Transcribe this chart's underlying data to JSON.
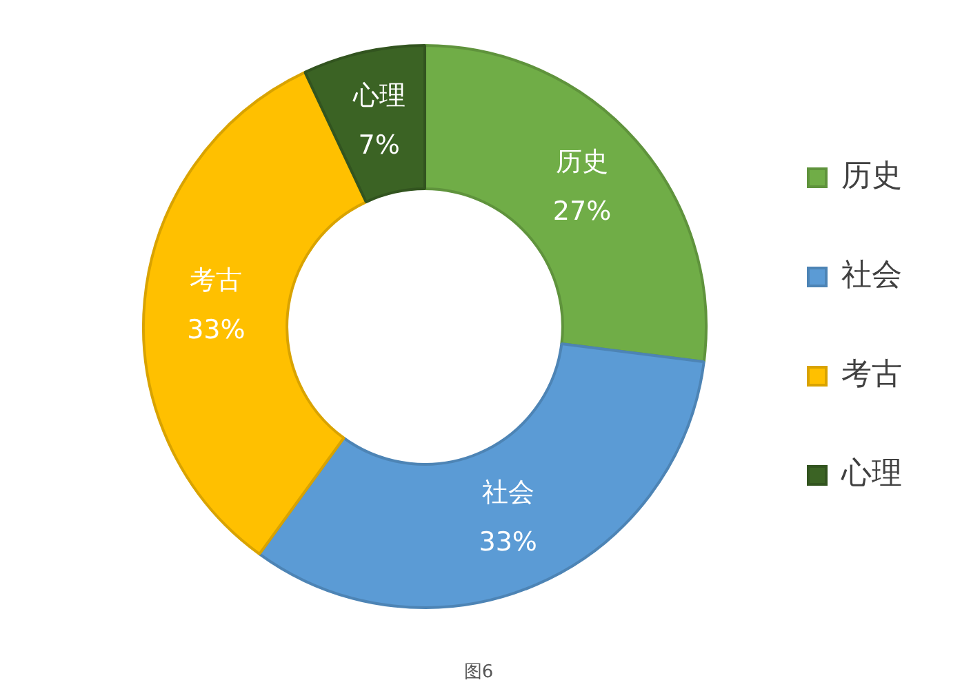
{
  "chart_data": {
    "type": "donut",
    "categories": [
      "历史",
      "社会",
      "考古",
      "心理"
    ],
    "values": [
      27,
      33,
      33,
      7
    ],
    "value_labels": [
      "27%",
      "33%",
      "33%",
      "7%"
    ],
    "colors": [
      "#70ad47",
      "#5b9bd5",
      "#ffc000",
      "#3b6324"
    ],
    "legend": "right",
    "annotations": [
      "图6"
    ]
  }
}
